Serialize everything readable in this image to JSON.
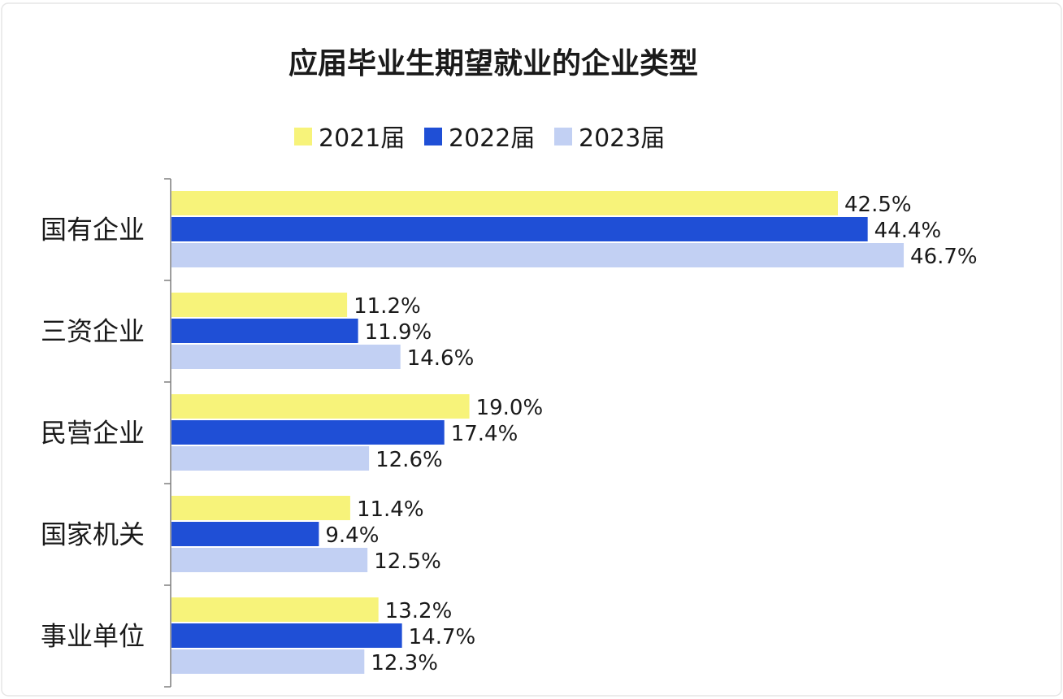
{
  "chart_data": {
    "type": "bar",
    "orientation": "horizontal",
    "title": "应届毕业生期望就业的企业类型",
    "categories": [
      "国有企业",
      "三资企业",
      "民营企业",
      "国家机关",
      "事业单位"
    ],
    "series": [
      {
        "name": "2021届",
        "color": "#f7f37a",
        "values": [
          42.5,
          11.2,
          19.0,
          11.4,
          13.2
        ],
        "labels": [
          "42.5%",
          "11.2%",
          "19.0%",
          "11.4%",
          "13.2%"
        ]
      },
      {
        "name": "2022届",
        "color": "#1f4fd6",
        "values": [
          44.4,
          11.9,
          17.4,
          9.4,
          14.7
        ],
        "labels": [
          "44.4%",
          "11.9%",
          "17.4%",
          "9.4%",
          "14.7%"
        ]
      },
      {
        "name": "2023届",
        "color": "#c2d0f3",
        "values": [
          46.7,
          14.6,
          12.6,
          12.5,
          12.3
        ],
        "labels": [
          "46.7%",
          "14.6%",
          "12.6%",
          "12.5%",
          "12.3%"
        ]
      }
    ],
    "unit": "%",
    "xlim": [
      0,
      50
    ],
    "grid": false,
    "legend_position": "top"
  }
}
